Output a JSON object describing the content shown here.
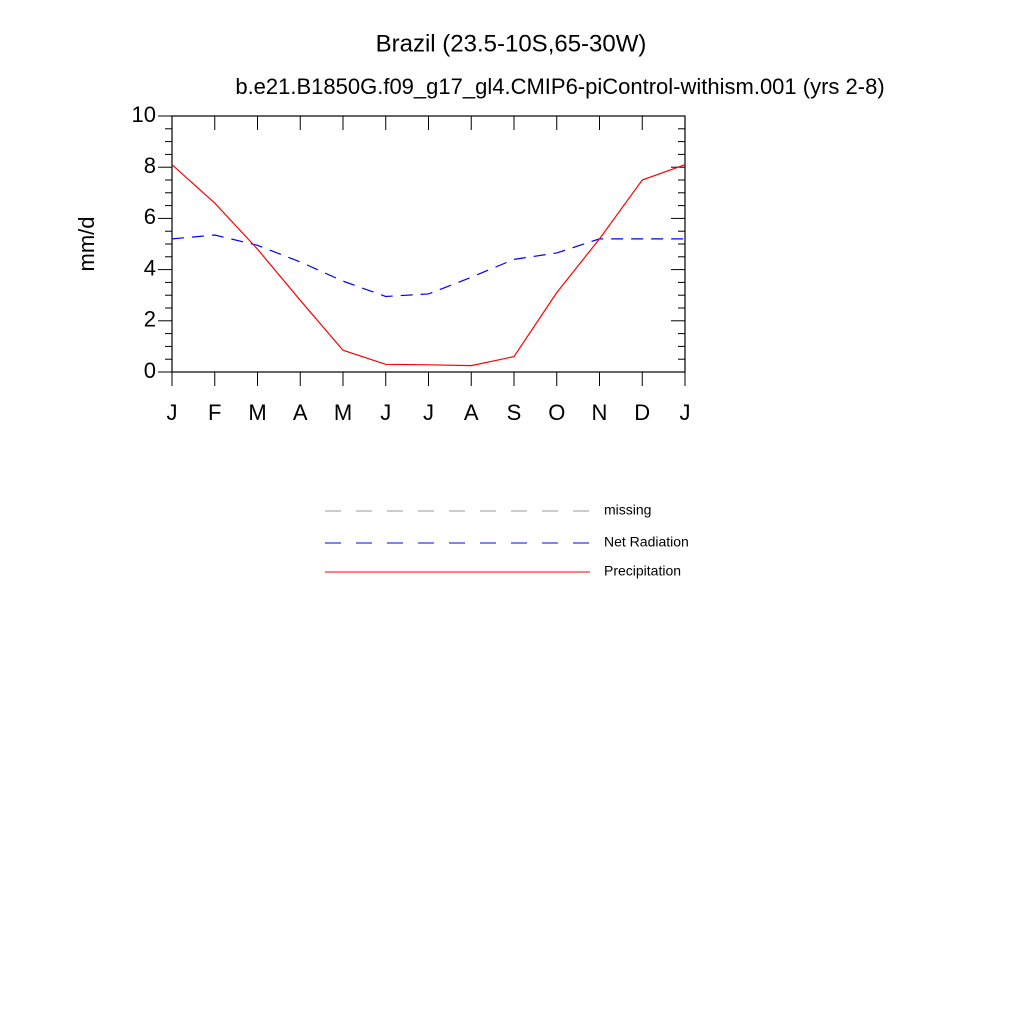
{
  "chart_data": {
    "type": "line",
    "title": "Brazil (23.5-10S,65-30W)",
    "subtitle": "b.e21.B1850G.f09_g17_gl4.CMIP6-piControl-withism.001 (yrs 2-8)",
    "y_label": "mm/d",
    "categories": [
      "J",
      "F",
      "M",
      "A",
      "M",
      "J",
      "J",
      "A",
      "S",
      "O",
      "N",
      "D",
      "J"
    ],
    "ylim": [
      0,
      10
    ],
    "yticks": [
      0,
      2,
      4,
      6,
      8,
      10
    ],
    "series": [
      {
        "name": "missing",
        "color": "#999999",
        "dashed": true,
        "values": [
          null,
          null,
          null,
          null,
          null,
          null,
          null,
          null,
          null,
          null,
          null,
          null,
          null
        ]
      },
      {
        "name": "Net Radiation",
        "color": "#0000ff",
        "dashed": true,
        "values": [
          5.2,
          5.35,
          4.95,
          4.3,
          3.55,
          2.95,
          3.05,
          3.7,
          4.4,
          4.65,
          5.2,
          5.2,
          5.2
        ]
      },
      {
        "name": "Precipitation",
        "color": "#ff0000",
        "dashed": false,
        "values": [
          8.1,
          6.6,
          4.8,
          2.8,
          0.85,
          0.3,
          0.28,
          0.25,
          0.6,
          3.1,
          5.2,
          7.5,
          8.1
        ]
      }
    ]
  }
}
